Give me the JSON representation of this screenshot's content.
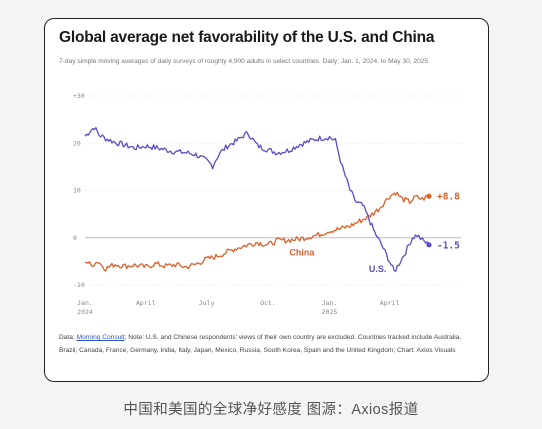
{
  "card": {
    "title": "Global average net favorability of the U.S. and China",
    "subtitle": "7-day simple moving averages of daily surveys of roughly 4,900 adults in select countries. Daily; Jan. 1, 2024, to May 30, 2025",
    "note_prefix": "Data: ",
    "note_link": "Morning Consult",
    "note_rest": "; Note: U.S. and Chinese respondents' views of their own country are excluded. Countries tracked include Australia, Brazil, Canada, France, Germany, India, Italy, Japan, Mexico, Russia, South Korea, Spain and the United Kingdom; Chart: Axios Visuals"
  },
  "caption": "中国和美国的全球净好感度 图源：Axios报道",
  "chart_data": {
    "type": "line",
    "title": "Global average net favorability of the U.S. and China",
    "ylim": [
      -10,
      30
    ],
    "y_ticks": [
      -10,
      0,
      10,
      20,
      30
    ],
    "y_tick_labels": [
      "-10",
      "0",
      "10",
      "20",
      "+30"
    ],
    "x_range": [
      "2024-01-01",
      "2025-05-30"
    ],
    "x_ticks": [
      {
        "date": "2024-01-01",
        "label": "Jan.",
        "sublabel": "2024"
      },
      {
        "date": "2024-04-01",
        "label": "April",
        "sublabel": ""
      },
      {
        "date": "2024-07-01",
        "label": "July",
        "sublabel": ""
      },
      {
        "date": "2024-10-01",
        "label": "Oct.",
        "sublabel": ""
      },
      {
        "date": "2025-01-01",
        "label": "Jan.",
        "sublabel": "2025"
      },
      {
        "date": "2025-04-01",
        "label": "April",
        "sublabel": ""
      }
    ],
    "grid": "horizontal",
    "series": [
      {
        "name": "U.S.",
        "color": "#5b4bc4",
        "end_label": "-1.5",
        "points": [
          [
            "2024-01-01",
            21.5
          ],
          [
            "2024-01-08",
            22.5
          ],
          [
            "2024-01-15",
            23.4
          ],
          [
            "2024-01-22",
            21.8
          ],
          [
            "2024-02-01",
            21.0
          ],
          [
            "2024-02-15",
            20.2
          ],
          [
            "2024-03-01",
            19.6
          ],
          [
            "2024-03-15",
            19.0
          ],
          [
            "2024-04-01",
            19.4
          ],
          [
            "2024-04-15",
            19.1
          ],
          [
            "2024-05-01",
            18.6
          ],
          [
            "2024-05-15",
            18.2
          ],
          [
            "2024-06-01",
            18.0
          ],
          [
            "2024-06-15",
            17.6
          ],
          [
            "2024-07-01",
            16.3
          ],
          [
            "2024-07-10",
            15.2
          ],
          [
            "2024-07-20",
            17.8
          ],
          [
            "2024-08-01",
            19.4
          ],
          [
            "2024-08-15",
            20.5
          ],
          [
            "2024-08-25",
            21.6
          ],
          [
            "2024-09-01",
            22.2
          ],
          [
            "2024-09-15",
            19.5
          ],
          [
            "2024-10-01",
            18.6
          ],
          [
            "2024-10-15",
            18.0
          ],
          [
            "2024-11-01",
            18.5
          ],
          [
            "2024-11-15",
            19.6
          ],
          [
            "2024-12-01",
            20.4
          ],
          [
            "2024-12-15",
            21.0
          ],
          [
            "2025-01-01",
            21.3
          ],
          [
            "2025-01-10",
            20.5
          ],
          [
            "2025-01-20",
            15.0
          ],
          [
            "2025-02-01",
            10.0
          ],
          [
            "2025-02-10",
            7.5
          ],
          [
            "2025-02-20",
            6.8
          ],
          [
            "2025-03-01",
            4.0
          ],
          [
            "2025-03-10",
            1.0
          ],
          [
            "2025-03-20",
            -1.5
          ],
          [
            "2025-04-01",
            -5.0
          ],
          [
            "2025-04-08",
            -7.2
          ],
          [
            "2025-04-15",
            -5.5
          ],
          [
            "2025-04-25",
            -3.0
          ],
          [
            "2025-05-05",
            0.0
          ],
          [
            "2025-05-12",
            0.6
          ],
          [
            "2025-05-20",
            -0.5
          ],
          [
            "2025-05-30",
            -1.5
          ]
        ]
      },
      {
        "name": "China",
        "color": "#d9622b",
        "end_label": "+8.8",
        "points": [
          [
            "2024-01-01",
            -4.8
          ],
          [
            "2024-01-10",
            -5.8
          ],
          [
            "2024-01-20",
            -5.0
          ],
          [
            "2024-02-01",
            -6.5
          ],
          [
            "2024-02-15",
            -5.6
          ],
          [
            "2024-03-01",
            -6.0
          ],
          [
            "2024-03-15",
            -5.8
          ],
          [
            "2024-04-01",
            -6.2
          ],
          [
            "2024-04-15",
            -5.5
          ],
          [
            "2024-05-01",
            -6.0
          ],
          [
            "2024-05-15",
            -5.7
          ],
          [
            "2024-06-01",
            -6.2
          ],
          [
            "2024-06-15",
            -5.6
          ],
          [
            "2024-07-01",
            -4.5
          ],
          [
            "2024-07-15",
            -4.0
          ],
          [
            "2024-08-01",
            -3.0
          ],
          [
            "2024-08-15",
            -2.2
          ],
          [
            "2024-09-01",
            -1.5
          ],
          [
            "2024-09-15",
            -1.0
          ],
          [
            "2024-10-01",
            -1.5
          ],
          [
            "2024-10-15",
            -0.6
          ],
          [
            "2024-11-01",
            -0.5
          ],
          [
            "2024-11-15",
            -0.3
          ],
          [
            "2024-12-01",
            0.2
          ],
          [
            "2024-12-15",
            0.6
          ],
          [
            "2025-01-01",
            1.5
          ],
          [
            "2025-01-15",
            1.8
          ],
          [
            "2025-02-01",
            2.5
          ],
          [
            "2025-02-15",
            3.5
          ],
          [
            "2025-03-01",
            4.5
          ],
          [
            "2025-03-15",
            6.0
          ],
          [
            "2025-04-01",
            8.8
          ],
          [
            "2025-04-10",
            9.6
          ],
          [
            "2025-04-20",
            8.2
          ],
          [
            "2025-05-01",
            7.6
          ],
          [
            "2025-05-10",
            8.6
          ],
          [
            "2025-05-20",
            8.2
          ],
          [
            "2025-05-30",
            8.8
          ]
        ]
      }
    ]
  }
}
